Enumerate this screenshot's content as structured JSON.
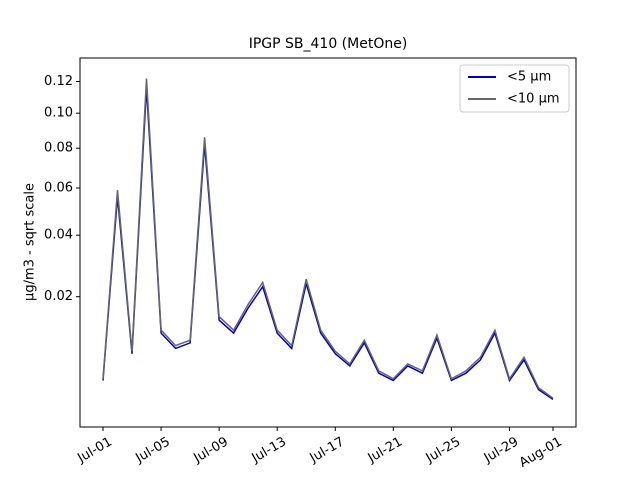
{
  "chart_data": {
    "type": "line",
    "title": "IPGP SB_410 (MetOne)",
    "y_label": "µg/m3 - sqrt scale",
    "y_scale": "sqrt",
    "x": [
      "Jul-01",
      "Jul-02",
      "Jul-03",
      "Jul-04",
      "Jul-05",
      "Jul-06",
      "Jul-07",
      "Jul-08",
      "Jul-09",
      "Jul-10",
      "Jul-11",
      "Jul-12",
      "Jul-13",
      "Jul-14",
      "Jul-15",
      "Jul-16",
      "Jul-17",
      "Jul-18",
      "Jul-19",
      "Jul-20",
      "Jul-21",
      "Jul-22",
      "Jul-23",
      "Jul-24",
      "Jul-25",
      "Jul-26",
      "Jul-27",
      "Jul-28",
      "Jul-29",
      "Jul-30",
      "Jul-31",
      "Aug-01"
    ],
    "series": [
      {
        "name": "<5 µm",
        "color": "#0000cc",
        "values": [
          0.0038,
          0.056,
          0.0076,
          0.116,
          0.0114,
          0.0085,
          0.0095,
          0.082,
          0.0142,
          0.0114,
          0.0171,
          0.0228,
          0.0114,
          0.0085,
          0.0237,
          0.0114,
          0.0076,
          0.0057,
          0.0095,
          0.0047,
          0.0038,
          0.0057,
          0.0047,
          0.0104,
          0.0038,
          0.0047,
          0.0066,
          0.0114,
          0.0038,
          0.0066,
          0.0028,
          0.0019
        ]
      },
      {
        "name": "<10 µm",
        "color": "#666666",
        "values": [
          0.004,
          0.059,
          0.008,
          0.122,
          0.012,
          0.009,
          0.01,
          0.086,
          0.015,
          0.012,
          0.018,
          0.024,
          0.012,
          0.009,
          0.025,
          0.012,
          0.008,
          0.006,
          0.01,
          0.005,
          0.004,
          0.006,
          0.005,
          0.011,
          0.004,
          0.005,
          0.007,
          0.012,
          0.004,
          0.007,
          0.003,
          0.002
        ]
      }
    ],
    "xticks": [
      "Jul-01",
      "Jul-05",
      "Jul-09",
      "Jul-13",
      "Jul-17",
      "Jul-21",
      "Jul-25",
      "Jul-29",
      "Aug-01"
    ],
    "ylim": [
      0.0003,
      0.136
    ],
    "yticks": [
      0.02,
      0.04,
      0.06,
      0.08,
      {
        "value": 0.1,
        "label": "0.10"
      },
      0.12
    ],
    "legend": "upper right"
  }
}
